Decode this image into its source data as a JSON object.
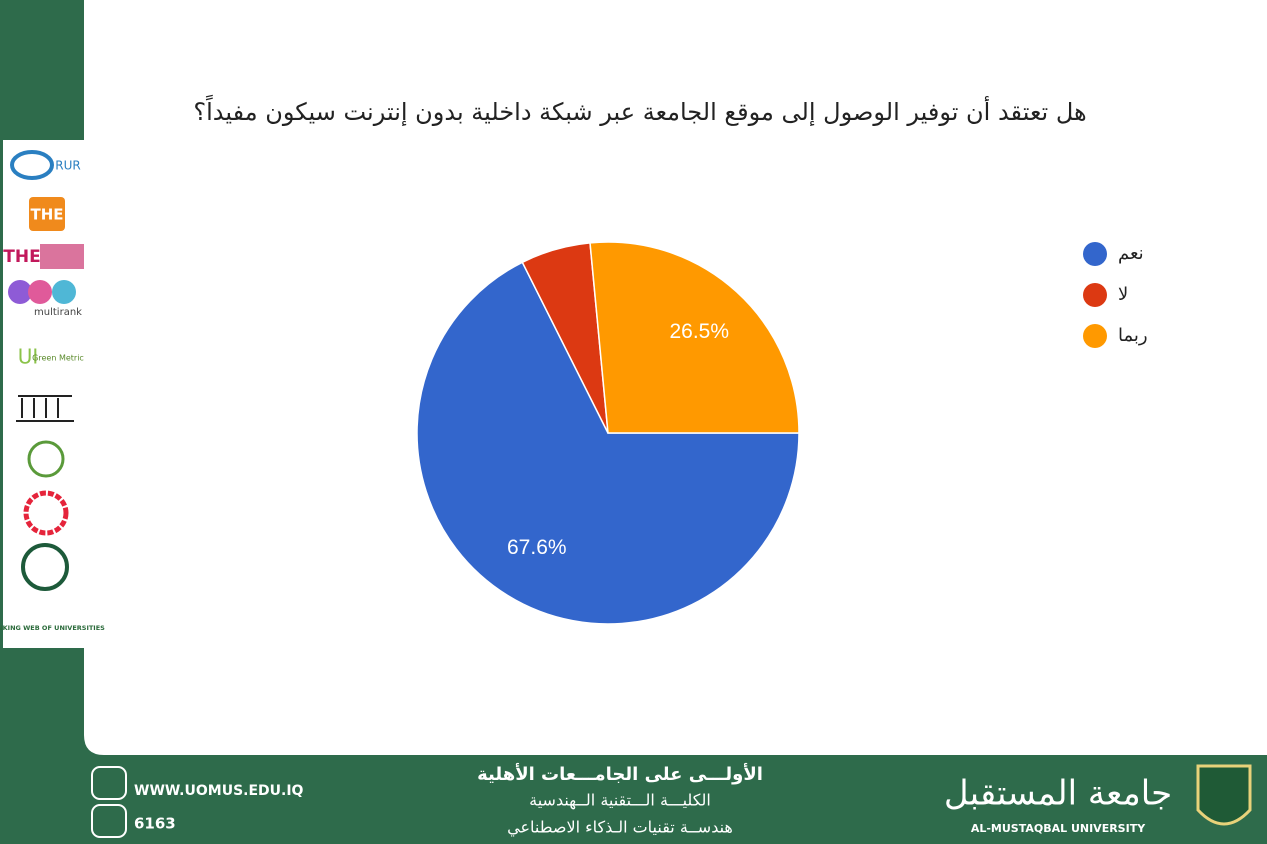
{
  "chart_data": {
    "type": "pie",
    "title": "هل تعتقد أن توفير الوصول إلى موقع الجامعة عبر شبكة داخلية بدون إنترنت سيكون مفيداً؟",
    "categories": [
      "نعم",
      "لا",
      "ربما"
    ],
    "values": [
      67.6,
      5.9,
      26.5
    ],
    "value_labels": [
      "67.6%",
      null,
      "26.5%"
    ],
    "colors": [
      "#3366cc",
      "#dc3912",
      "#ff9900"
    ],
    "legend": "right"
  },
  "sidebar": {
    "logos": [
      "RUR",
      "THE",
      "THE",
      "multirank",
      "UI",
      "Green Metric",
      "RANKING WEB OF UNIVERSITIES"
    ]
  },
  "footer": {
    "website": "WWW.UOMUS.EDU.IQ",
    "phone": "6163",
    "lines": [
      "الأولـــى على الجامـــعات الأهلية",
      "الكليـــة الـــتقنية الــهندسية",
      "هندســة تقنيات الـذكاء الاصطناعي"
    ],
    "university_ar": "جامعة المستقبل",
    "university_en": "AL-MUSTAQBAL UNIVERSITY"
  }
}
